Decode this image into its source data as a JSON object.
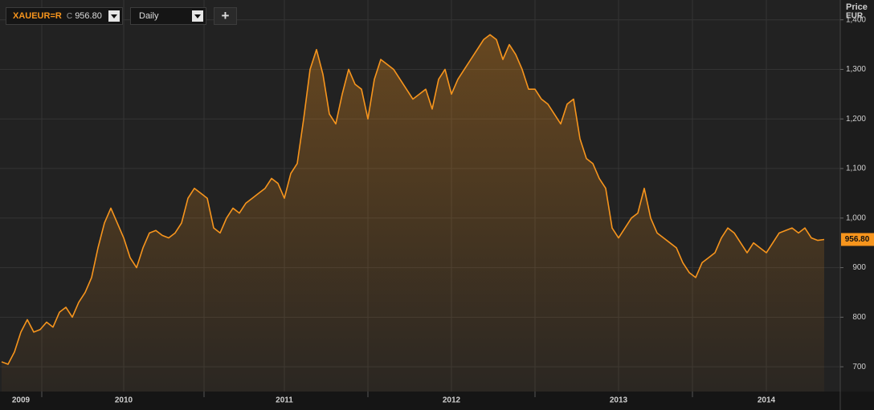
{
  "header": {
    "symbol": "XAUEUR=R",
    "close_prefix": "C",
    "interval": "Daily",
    "add_button": "+"
  },
  "chart_data": {
    "type": "line",
    "axis_title": [
      "Price",
      "EUR"
    ],
    "color": "#f7951d",
    "categories": [
      null,
      null,
      null,
      "2009",
      null,
      null,
      null,
      null,
      null,
      null,
      null,
      null,
      null,
      null,
      null,
      null,
      null,
      null,
      null,
      "2010",
      null,
      null,
      null,
      null,
      null,
      null,
      null,
      null,
      null,
      null,
      null,
      null,
      null,
      null,
      null,
      null,
      null,
      null,
      null,
      null,
      null,
      null,
      null,
      null,
      "2011",
      null,
      null,
      null,
      null,
      null,
      null,
      null,
      null,
      null,
      null,
      null,
      null,
      null,
      null,
      null,
      null,
      null,
      null,
      null,
      null,
      null,
      null,
      null,
      null,
      null,
      "2012",
      null,
      null,
      null,
      null,
      null,
      null,
      null,
      null,
      null,
      null,
      null,
      null,
      null,
      null,
      null,
      null,
      null,
      null,
      null,
      null,
      null,
      null,
      null,
      null,
      null,
      "2013",
      null,
      null,
      null,
      null,
      null,
      null,
      null,
      null,
      null,
      null,
      null,
      null,
      null,
      null,
      null,
      null,
      null,
      null,
      null,
      null,
      null,
      null,
      "2014",
      null,
      null,
      null,
      null,
      null,
      null,
      null,
      null,
      null
    ],
    "values": [
      710,
      705,
      730,
      770,
      795,
      770,
      775,
      790,
      780,
      810,
      820,
      800,
      830,
      850,
      880,
      940,
      990,
      1020,
      990,
      960,
      920,
      900,
      940,
      970,
      975,
      965,
      960,
      970,
      990,
      1040,
      1060,
      1050,
      1040,
      980,
      970,
      1000,
      1020,
      1010,
      1030,
      1040,
      1050,
      1060,
      1080,
      1070,
      1040,
      1090,
      1110,
      1200,
      1300,
      1340,
      1290,
      1210,
      1190,
      1250,
      1300,
      1270,
      1260,
      1200,
      1280,
      1320,
      1310,
      1300,
      1280,
      1260,
      1240,
      1250,
      1260,
      1220,
      1280,
      1300,
      1250,
      1280,
      1300,
      1320,
      1340,
      1360,
      1370,
      1360,
      1320,
      1350,
      1330,
      1300,
      1260,
      1260,
      1240,
      1230,
      1210,
      1190,
      1230,
      1240,
      1160,
      1120,
      1110,
      1080,
      1060,
      980,
      960,
      980,
      1000,
      1010,
      1060,
      1000,
      970,
      960,
      950,
      940,
      910,
      890,
      880,
      910,
      920,
      930,
      960,
      980,
      970,
      950,
      930,
      950,
      940,
      930,
      950,
      970,
      975,
      980,
      970,
      980,
      960,
      955,
      956.8
    ],
    "last_price": {
      "value": 956.8,
      "label": "956.80"
    },
    "ylim": [
      650,
      1440
    ],
    "yticks": [
      700,
      800,
      900,
      {
        "value": 1000,
        "label": "1,000"
      },
      {
        "value": 1100,
        "label": "1,100"
      },
      {
        "value": 1200,
        "label": "1,200"
      },
      {
        "value": 1300,
        "label": "1,300"
      },
      {
        "value": 1400,
        "label": "1,400"
      }
    ],
    "grid": true
  }
}
